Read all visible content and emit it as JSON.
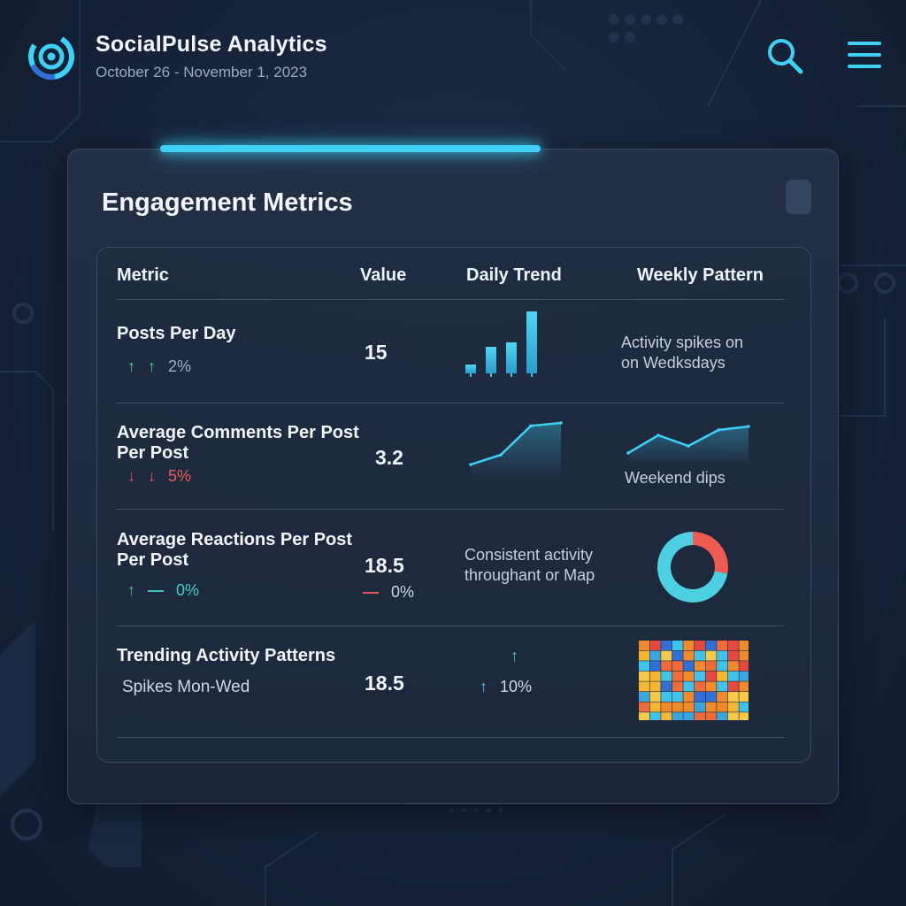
{
  "header": {
    "app_title": "SocialPulse Analytics",
    "date_range": "October 26 - November 1, 2023",
    "logo_icon": "target-logo-icon",
    "search_icon": "search-icon",
    "menu_icon": "hamburger-menu-icon"
  },
  "colors": {
    "accent": "#3ed0f5",
    "up": "#3ed68a",
    "down": "#f05a5a",
    "neutral": "#3ed0c8",
    "background": "#17233a"
  },
  "card": {
    "title": "Engagement Metrics"
  },
  "table": {
    "columns": [
      "Metric",
      "Value",
      "Daily Trend",
      "Weekly Pattern"
    ],
    "rows": [
      {
        "label": "Posts Per Day",
        "delta_text": "2%",
        "delta_direction": "up",
        "value": "15",
        "daily_trend": {
          "type": "bar",
          "values": [
            1,
            3,
            3.5,
            7
          ]
        },
        "weekly_note": [
          "Activity spikes on",
          "on Wedksdays"
        ]
      },
      {
        "label": [
          "Average Comments Per Post",
          "Per Post"
        ],
        "delta_text": "5%",
        "delta_direction": "down",
        "value": "3.2",
        "daily_trend": {
          "type": "area",
          "values": [
            1,
            2,
            5,
            5.3
          ]
        },
        "weekly_pattern": {
          "type": "area",
          "values": [
            1,
            3,
            1.8,
            3.6,
            4
          ]
        },
        "weekly_note": "Weekend dips"
      },
      {
        "label": [
          "Average Reactions Per Post",
          "Per Post"
        ],
        "delta_text": "0%",
        "delta_direction": "flat",
        "value": "18.5",
        "value_delta_text": "0%",
        "daily_note": [
          "Consistent activity",
          "throughant or Map"
        ],
        "weekly_pattern": {
          "type": "donut",
          "slices": [
            {
              "value": 72,
              "color": "#4dd0e1"
            },
            {
              "value": 28,
              "color": "#ef5a52"
            }
          ]
        }
      },
      {
        "label": "Trending Activity Patterns",
        "sub_label": "Spikes Mon-Wed",
        "value": "18.5",
        "delta_text": "10%",
        "delta_direction": "up",
        "weekly_pattern": {
          "type": "heatmap",
          "rows": 8,
          "cols": 10
        }
      }
    ]
  },
  "chart_data": [
    {
      "type": "bar",
      "values": [
        1,
        3,
        3.5,
        7
      ]
    },
    {
      "type": "area",
      "values": [
        1,
        2,
        5,
        5.3
      ]
    },
    {
      "type": "area",
      "values": [
        1,
        3,
        1.8,
        3.6,
        4
      ]
    },
    {
      "type": "pie",
      "values": [
        72,
        28
      ]
    },
    {
      "type": "heatmap",
      "rows": 8,
      "cols": 10
    }
  ]
}
